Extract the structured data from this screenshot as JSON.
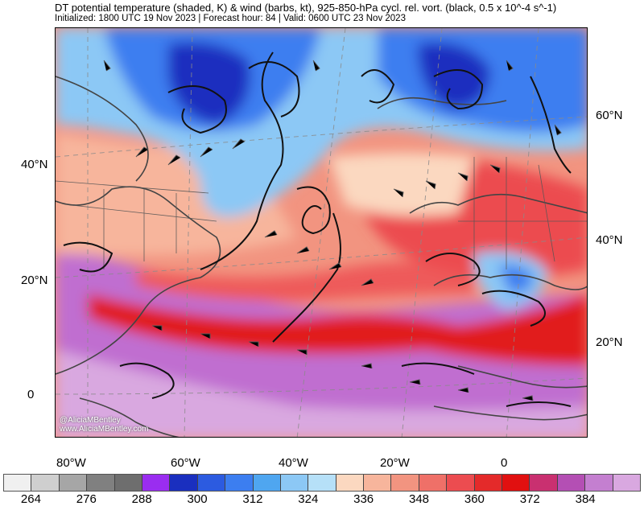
{
  "title": "DT potential temperature (shaded, K) & wind (barbs, kt), 925-850-hPa cycl. rel. vort. (black, 0.5 x 10^-4 s^-1)",
  "subtitle": "Initialized: 1800 UTC 19 Nov 2023 | Forecast hour: 84 | Valid: 0600 UTC 23 Nov 2023",
  "credit": {
    "handle": "@AliciaMBentley",
    "site": "www.AliciaMBentley.com"
  },
  "lat_labels_left": [
    "40°N",
    "20°N",
    "0"
  ],
  "lat_labels_right": [
    "60°N",
    "40°N",
    "20°N"
  ],
  "lon_labels": [
    "80°W",
    "60°W",
    "40°W",
    "20°W",
    "0"
  ],
  "colorbar": {
    "colors": [
      "#f0f0f0",
      "#cfcfcf",
      "#a6a6a6",
      "#808080",
      "#6e6e6e",
      "#9a2df0",
      "#1a2fbf",
      "#2c5be0",
      "#3c7ef0",
      "#4fa6f0",
      "#8cc8f5",
      "#b6e0f8",
      "#fbd8c0",
      "#f7b59c",
      "#f29480",
      "#ef7068",
      "#ec4c50",
      "#e42a2a",
      "#e11010",
      "#c93070",
      "#b44fb4",
      "#c47fd0",
      "#d9a8e0"
    ],
    "labels": [
      "264",
      "276",
      "288",
      "300",
      "312",
      "324",
      "336",
      "348",
      "360",
      "372",
      "384"
    ]
  },
  "map_colors": {
    "ocean_warm": "#ee5a5a",
    "ocean_hot": "#e11a1a",
    "tropics": "#c06ed0",
    "tropics_light": "#d9a8e0",
    "mid_lat": "#f7b59c",
    "cold_blue": "#3c7ef0",
    "deep_blue": "#1a2fbf",
    "light_blue": "#8cc8f5",
    "coast": "#444444"
  }
}
